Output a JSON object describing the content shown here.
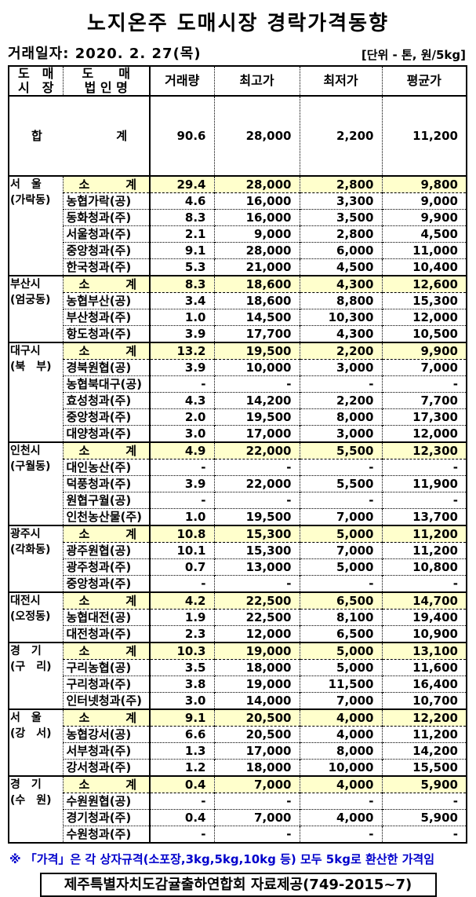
{
  "title": "노지온주 도매시장 경락가격동향",
  "meta": {
    "date_label": "거래일자: 2020. 2. 27(목)",
    "unit_label": "[단위 - 톤, 원/5kg]"
  },
  "colors": {
    "subtotal_bg": "#FFFFCC",
    "footnote_blue": "#0000CC",
    "border_black": "#000000"
  },
  "table": {
    "headers": {
      "market_line1": "도　매",
      "market_line2": "시　장",
      "corp_line1": "도　　매",
      "corp_line2": "법 인 명",
      "volume": "거래량",
      "high": "최고가",
      "low": "최저가",
      "avg": "평균가"
    },
    "total_row": {
      "left": "합",
      "right": "계",
      "values": [
        "90.6",
        "28,000",
        "2,200",
        "11,200"
      ]
    },
    "subtotal_label": {
      "left": "소",
      "right": "계"
    },
    "sections": [
      {
        "market": "서　울",
        "location": "(가락동)",
        "subtotal": [
          "29.4",
          "28,000",
          "2,800",
          "9,800"
        ],
        "companies": [
          {
            "name": "농협가락(공)",
            "values": [
              "4.6",
              "16,000",
              "3,300",
              "9,000"
            ]
          },
          {
            "name": "동화청과(주)",
            "values": [
              "8.3",
              "16,000",
              "3,500",
              "9,900"
            ]
          },
          {
            "name": "서울청과(주)",
            "values": [
              "2.1",
              "9,000",
              "2,800",
              "4,500"
            ]
          },
          {
            "name": "중앙청과(주)",
            "values": [
              "9.1",
              "28,000",
              "6,000",
              "11,000"
            ]
          },
          {
            "name": "한국청과(주)",
            "values": [
              "5.3",
              "21,000",
              "4,500",
              "10,400"
            ]
          }
        ]
      },
      {
        "market": "부산시",
        "location": "(엄궁동)",
        "subtotal": [
          "8.3",
          "18,600",
          "4,300",
          "12,600"
        ],
        "companies": [
          {
            "name": "농협부산(공)",
            "values": [
              "3.4",
              "18,600",
              "8,800",
              "15,300"
            ]
          },
          {
            "name": "부산청과(주)",
            "values": [
              "1.0",
              "14,500",
              "10,300",
              "12,000"
            ]
          },
          {
            "name": "항도청과(주)",
            "values": [
              "3.9",
              "17,700",
              "4,300",
              "10,500"
            ]
          }
        ]
      },
      {
        "market": "대구시",
        "location": "(북　부)",
        "subtotal": [
          "13.2",
          "19,500",
          "2,200",
          "9,900"
        ],
        "companies": [
          {
            "name": "경북원협(공)",
            "values": [
              "3.9",
              "10,000",
              "3,000",
              "7,000"
            ]
          },
          {
            "name": "농협북대구(공)",
            "values": [
              "-",
              "-",
              "-",
              "-"
            ]
          },
          {
            "name": "효성청과(주)",
            "values": [
              "4.3",
              "14,200",
              "2,200",
              "7,700"
            ]
          },
          {
            "name": "중앙청과(주)",
            "values": [
              "2.0",
              "19,500",
              "8,000",
              "17,300"
            ]
          },
          {
            "name": "대양청과(주)",
            "values": [
              "3.0",
              "17,000",
              "3,000",
              "12,000"
            ]
          }
        ]
      },
      {
        "market": "인천시",
        "location": "(구월동)",
        "subtotal": [
          "4.9",
          "22,000",
          "5,500",
          "12,300"
        ],
        "companies": [
          {
            "name": "대인농산(주)",
            "values": [
              "-",
              "-",
              "-",
              "-"
            ]
          },
          {
            "name": "덕풍청과(주)",
            "values": [
              "3.9",
              "22,000",
              "5,500",
              "11,900"
            ]
          },
          {
            "name": "원협구월(공)",
            "values": [
              "-",
              "-",
              "-",
              "-"
            ]
          },
          {
            "name": "인천농산물(주)",
            "values": [
              "1.0",
              "19,500",
              "7,000",
              "13,700"
            ]
          }
        ]
      },
      {
        "market": "광주시",
        "location": "(각화동)",
        "subtotal": [
          "10.8",
          "15,300",
          "5,000",
          "11,200"
        ],
        "companies": [
          {
            "name": "광주원협(공)",
            "values": [
              "10.1",
              "15,300",
              "7,000",
              "11,200"
            ]
          },
          {
            "name": "광주청과(주)",
            "values": [
              "0.7",
              "13,000",
              "5,000",
              "10,800"
            ]
          },
          {
            "name": "중앙청과(주)",
            "values": [
              "-",
              "-",
              "-",
              "-"
            ]
          }
        ]
      },
      {
        "market": "대전시",
        "location": "(오정동)",
        "subtotal": [
          "4.2",
          "22,500",
          "6,500",
          "14,700"
        ],
        "companies": [
          {
            "name": "농협대전(공)",
            "values": [
              "1.9",
              "22,500",
              "8,100",
              "19,400"
            ]
          },
          {
            "name": "대전청과(주)",
            "values": [
              "2.3",
              "12,000",
              "6,500",
              "10,900"
            ]
          }
        ]
      },
      {
        "market": "경　기",
        "location": "(구　리)",
        "subtotal": [
          "10.3",
          "19,000",
          "5,000",
          "13,100"
        ],
        "companies": [
          {
            "name": "구리농협(공)",
            "values": [
              "3.5",
              "18,000",
              "5,000",
              "11,600"
            ]
          },
          {
            "name": "구리청과(주)",
            "values": [
              "3.8",
              "19,000",
              "11,500",
              "16,400"
            ]
          },
          {
            "name": "인터넷청과(주)",
            "values": [
              "3.0",
              "14,000",
              "7,000",
              "10,700"
            ]
          }
        ]
      },
      {
        "market": "서　울",
        "location": "(강　서)",
        "subtotal": [
          "9.1",
          "20,500",
          "4,000",
          "12,200"
        ],
        "companies": [
          {
            "name": "농협강서(공)",
            "values": [
              "6.6",
              "20,500",
              "4,000",
              "11,200"
            ]
          },
          {
            "name": "서부청과(주)",
            "values": [
              "1.3",
              "17,000",
              "8,000",
              "14,200"
            ]
          },
          {
            "name": "강서청과(주)",
            "values": [
              "1.2",
              "18,000",
              "10,000",
              "15,500"
            ]
          }
        ]
      },
      {
        "market": "경　기",
        "location": "(수　원)",
        "subtotal": [
          "0.4",
          "7,000",
          "4,000",
          "5,900"
        ],
        "companies": [
          {
            "name": "수원원협(공)",
            "values": [
              "-",
              "-",
              "-",
              "-"
            ]
          },
          {
            "name": "경기청과(주)",
            "values": [
              "0.4",
              "7,000",
              "4,000",
              "5,900"
            ]
          },
          {
            "name": "수원청과(주)",
            "values": [
              "-",
              "-",
              "-",
              "-"
            ]
          }
        ]
      }
    ]
  },
  "footnote": "※ 「가격」은 각 상자규격(소포장,3kg,5kg,10kg 등) 모두 5kg로 환산한 가격임",
  "provider": "제주특별자치도감귤출하연합회 자료제공(749-2015~7)"
}
